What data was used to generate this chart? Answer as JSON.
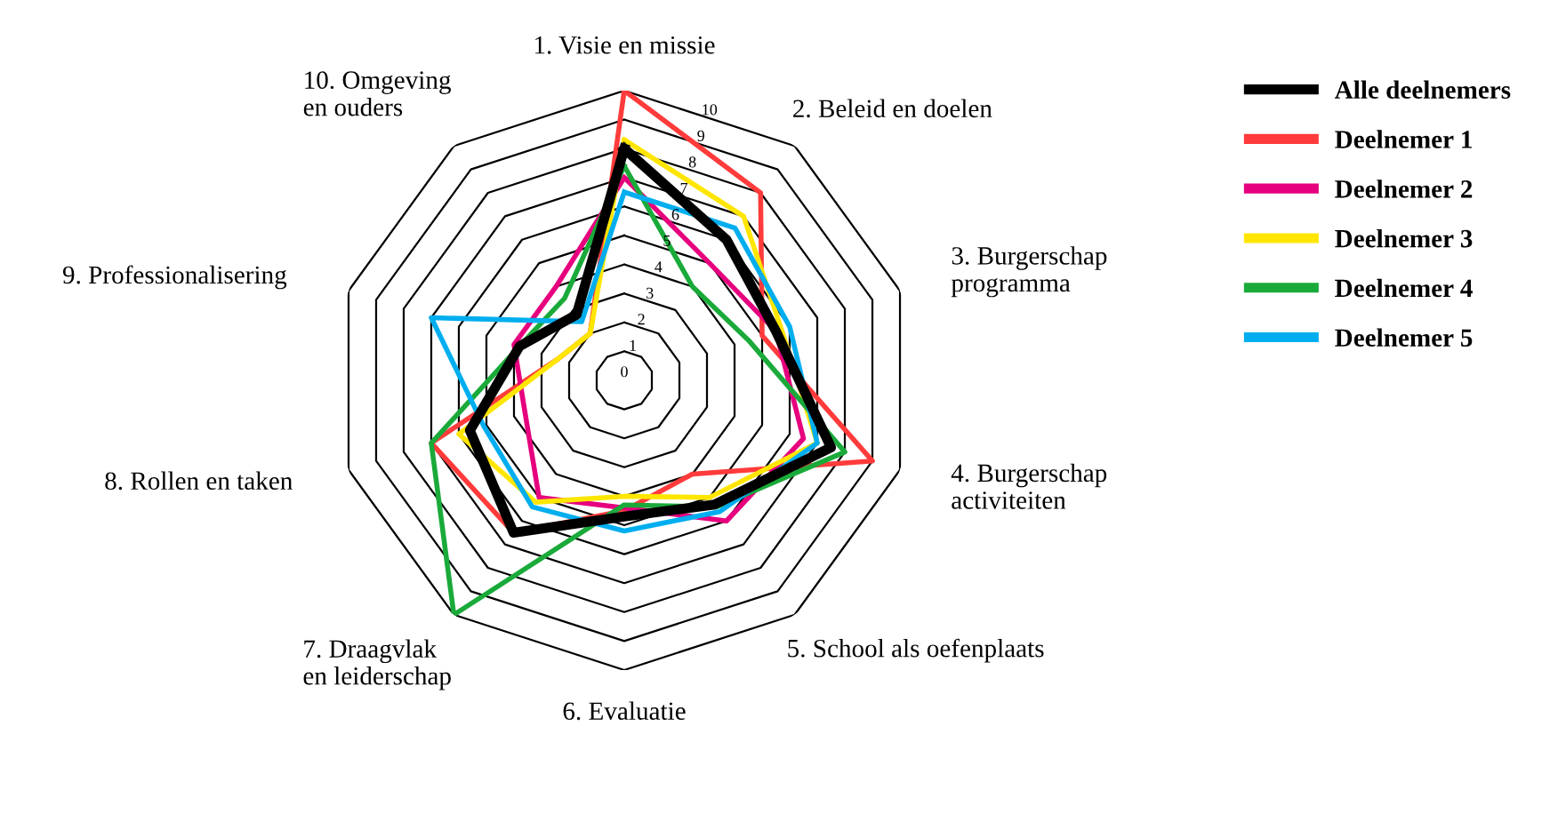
{
  "chart_data": {
    "type": "radar",
    "categories": [
      "1. Visie en missie",
      "2. Beleid en doelen",
      "3. Burgerschap\nprogramma",
      "4. Burgerschap\nactiviteiten",
      "5. School als oefenplaats",
      "6. Evaluatie",
      "7. Draagvlak\nen leiderschap",
      "8. Rollen en taken",
      "9. Professionalisering",
      "10. Omgeving\nen ouders"
    ],
    "series": [
      {
        "name": "Alle deelnemers",
        "color": "#000000",
        "values": [
          8,
          6,
          5.5,
          7.5,
          5.3,
          4.7,
          6.5,
          5.6,
          3.8,
          2.8
        ]
      },
      {
        "name": "Deelnemer 1",
        "color": "#ff3b3b",
        "values": [
          10,
          8,
          5,
          9,
          4,
          4.5,
          6.5,
          7,
          2.4,
          2
        ]
      },
      {
        "name": "Deelnemer 2",
        "color": "#e6007e",
        "values": [
          7,
          5,
          5.5,
          6.5,
          6,
          4.4,
          5,
          3.6,
          4,
          4
        ]
      },
      {
        "name": "Deelnemer 3",
        "color": "#ffe600",
        "values": [
          8.3,
          7,
          5.7,
          7,
          5,
          4,
          5.2,
          6,
          2.4,
          2
        ]
      },
      {
        "name": "Deelnemer 4",
        "color": "#1aaa3a",
        "values": [
          7.4,
          4,
          4.5,
          8,
          5.4,
          4.3,
          10,
          7,
          3.8,
          3.5
        ]
      },
      {
        "name": "Deelnemer 5",
        "color": "#00aeef",
        "values": [
          6.5,
          6.5,
          6,
          7,
          5.6,
          5.2,
          5.4,
          5.1,
          7,
          2.5
        ]
      }
    ],
    "ylim": [
      0,
      10
    ],
    "yticks": [
      0,
      1,
      2,
      3,
      4,
      5,
      6,
      7,
      8,
      9,
      10
    ],
    "grid": true,
    "legend": "top right",
    "marker": "none",
    "line_style": "solid"
  }
}
